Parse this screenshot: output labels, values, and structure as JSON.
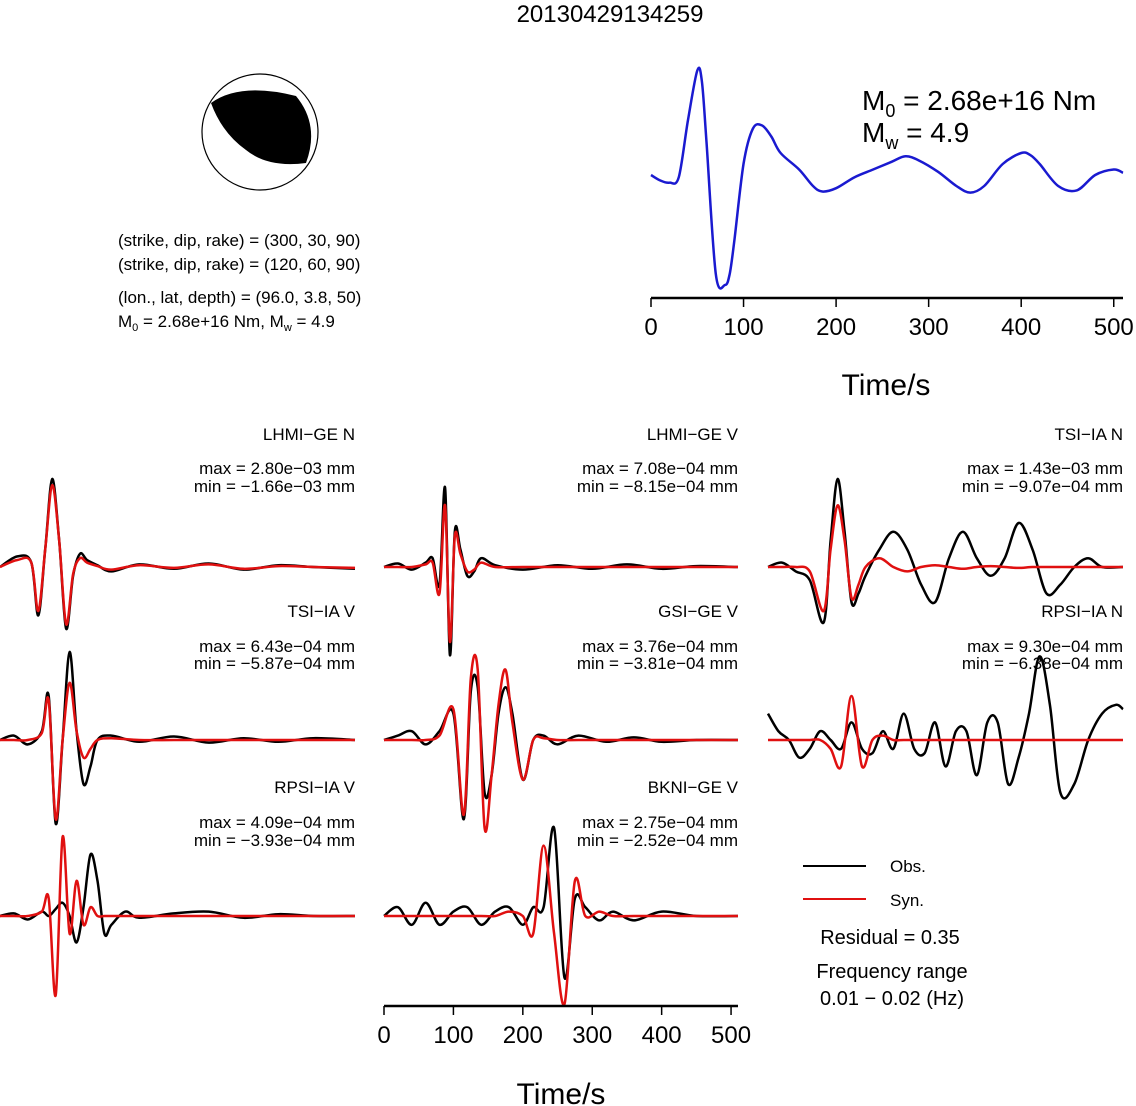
{
  "title": "20130429134259",
  "mechanism": {
    "line1": "(strike, dip, rake) = (300, 30, 90)",
    "line2": "(strike, dip, rake) = (120, 60, 90)",
    "line3": "(lon., lat, depth) = (96.0, 3.8, 50)",
    "m0_prefix": "M",
    "m0_sub": "0",
    "m0_value": " = 2.68e+16 Nm, M",
    "mw_sub": "w",
    "mw_value": " = 4.9"
  },
  "stf": {
    "m0_sym": "M",
    "m0_sub": "0",
    "m0_val": " = 2.68e+16 Nm",
    "mw_sym": "M",
    "mw_sub": "w",
    "mw_val": " = 4.9"
  },
  "legend": {
    "obs": "Obs.",
    "syn": "Syn.",
    "residual": "Residual = 0.35",
    "freq_title": "Frequency range",
    "freq_value": "0.01 − 0.02 (Hz)"
  },
  "colors": {
    "obs": "#000000",
    "syn": "#e01010",
    "stf": "#1a1ad0"
  },
  "chart_data": [
    {
      "type": "line",
      "title": "",
      "xlabel": "Time/s",
      "ylabel": "",
      "xlim": [
        0,
        510
      ],
      "xticks": [
        0,
        100,
        200,
        300,
        400,
        500
      ],
      "grid": false,
      "series": [
        {
          "name": "",
          "x": [
            0,
            10,
            20,
            30,
            40,
            50,
            55,
            60,
            70,
            80,
            85,
            90,
            100,
            110,
            120,
            130,
            140,
            160,
            175,
            185,
            200,
            220,
            240,
            260,
            275,
            290,
            310,
            330,
            345,
            360,
            380,
            400,
            410,
            420,
            440,
            460,
            480,
            500,
            510
          ],
          "y": [
            0.0,
            -0.05,
            -0.07,
            -0.02,
            0.5,
            0.95,
            0.85,
            0.3,
            -0.9,
            -1.0,
            -0.9,
            -0.6,
            0.1,
            0.42,
            0.45,
            0.35,
            0.2,
            0.05,
            -0.1,
            -0.15,
            -0.12,
            -0.02,
            0.05,
            0.12,
            0.17,
            0.13,
            0.03,
            -0.1,
            -0.16,
            -0.1,
            0.1,
            0.2,
            0.18,
            0.1,
            -0.1,
            -0.14,
            0.0,
            0.05,
            0.02
          ]
        }
      ]
    },
    {
      "type": "line",
      "title": "LHMI−GE N",
      "xlabel": "",
      "ylabel": "",
      "max_label": "max = 2.80e−03 mm",
      "min_label": "min = −1.66e−03 mm",
      "series": [
        {
          "name": "Obs.",
          "x": [
            0,
            25,
            45,
            55,
            65,
            75,
            85,
            95,
            105,
            115,
            125,
            140,
            160,
            200,
            250,
            300,
            350,
            400,
            450,
            510
          ],
          "y": [
            0,
            0.12,
            0.05,
            -0.55,
            0.2,
            1.0,
            0.3,
            -0.7,
            -0.1,
            0.15,
            0.08,
            0.02,
            -0.05,
            0.03,
            -0.02,
            0.04,
            -0.03,
            0.02,
            0.0,
            -0.02
          ]
        },
        {
          "name": "Syn.",
          "x": [
            0,
            25,
            45,
            55,
            65,
            75,
            85,
            95,
            105,
            115,
            125,
            140,
            160,
            200,
            250,
            300,
            350,
            400,
            450,
            510
          ],
          "y": [
            0,
            0.08,
            0.05,
            -0.5,
            0.2,
            0.93,
            0.3,
            -0.65,
            -0.08,
            0.1,
            0.05,
            0.01,
            -0.03,
            0.02,
            -0.01,
            0.03,
            -0.02,
            0.01,
            0.0,
            -0.01
          ]
        }
      ]
    },
    {
      "type": "line",
      "title": "LHMI−GE V",
      "xlabel": "",
      "ylabel": "",
      "max_label": "max = 7.08e−04 mm",
      "min_label": "min = −8.15e−04 mm",
      "series": [
        {
          "name": "Obs.",
          "x": [
            0,
            20,
            40,
            60,
            70,
            80,
            88,
            95,
            102,
            110,
            120,
            130,
            140,
            160,
            200,
            250,
            300,
            350,
            400,
            450,
            510
          ],
          "y": [
            0,
            0.04,
            -0.03,
            0.05,
            0.1,
            -0.2,
            0.9,
            -1.0,
            0.4,
            0.2,
            -0.1,
            -0.05,
            0.1,
            0.02,
            -0.03,
            0.02,
            -0.02,
            0.03,
            -0.02,
            0.01,
            0.0
          ]
        },
        {
          "name": "Syn.",
          "x": [
            0,
            20,
            40,
            60,
            70,
            80,
            88,
            95,
            102,
            110,
            120,
            130,
            140,
            160,
            200,
            250,
            300,
            350,
            400,
            450,
            510
          ],
          "y": [
            0,
            0.0,
            0.0,
            0.03,
            0.05,
            -0.3,
            0.7,
            -0.85,
            0.35,
            0.15,
            -0.05,
            -0.03,
            0.05,
            0.0,
            0.0,
            0.0,
            0.0,
            0.0,
            0.0,
            0.0,
            0.0
          ]
        }
      ]
    },
    {
      "type": "line",
      "title": "TSI−IA N",
      "xlabel": "",
      "ylabel": "",
      "max_label": "max = 1.43e−03 mm",
      "min_label": "min = −9.07e−04 mm",
      "series": [
        {
          "name": "Obs.",
          "x": [
            0,
            20,
            40,
            60,
            80,
            90,
            100,
            110,
            120,
            130,
            140,
            160,
            180,
            200,
            220,
            240,
            260,
            280,
            300,
            320,
            340,
            360,
            380,
            400,
            420,
            440,
            460,
            480,
            510
          ],
          "y": [
            0,
            0.05,
            -0.05,
            -0.15,
            -0.63,
            0.3,
            1.0,
            0.4,
            -0.4,
            -0.3,
            -0.1,
            0.2,
            0.4,
            0.2,
            -0.2,
            -0.4,
            0.1,
            0.4,
            0.1,
            -0.1,
            0.1,
            0.5,
            0.2,
            -0.3,
            -0.2,
            0.0,
            0.1,
            0.0,
            0.0
          ]
        },
        {
          "name": "Syn.",
          "x": [
            0,
            20,
            40,
            60,
            80,
            90,
            100,
            110,
            120,
            130,
            140,
            160,
            180,
            200,
            220,
            240,
            260,
            280,
            300,
            320,
            340,
            360,
            380,
            400,
            420,
            440,
            460,
            480,
            510
          ],
          "y": [
            0,
            0.0,
            0.0,
            -0.05,
            -0.5,
            0.2,
            0.7,
            0.3,
            -0.35,
            -0.2,
            0.0,
            0.1,
            0.0,
            -0.05,
            0.0,
            0.02,
            0.0,
            -0.02,
            0.0,
            0.01,
            0.0,
            -0.01,
            0.0,
            0.0,
            0.0,
            0.0,
            0.0,
            0.0,
            0.0
          ]
        }
      ]
    },
    {
      "type": "line",
      "title": "TSI−IA V",
      "xlabel": "",
      "ylabel": "",
      "max_label": "max = 6.43e−04 mm",
      "min_label": "min = −5.87e−04 mm",
      "series": [
        {
          "name": "Obs.",
          "x": [
            0,
            20,
            40,
            60,
            70,
            80,
            90,
            100,
            110,
            120,
            130,
            140,
            160,
            200,
            250,
            300,
            350,
            400,
            450,
            510
          ],
          "y": [
            0,
            0.05,
            -0.05,
            0.1,
            0.5,
            -0.95,
            0.0,
            1.0,
            0.1,
            -0.5,
            -0.3,
            0.0,
            0.05,
            -0.02,
            0.04,
            -0.03,
            0.02,
            -0.02,
            0.02,
            0.0
          ]
        },
        {
          "name": "Syn.",
          "x": [
            0,
            20,
            40,
            60,
            70,
            80,
            90,
            100,
            110,
            120,
            130,
            140,
            160,
            200,
            250,
            300,
            350,
            400,
            450,
            510
          ],
          "y": [
            0,
            0.0,
            0.0,
            0.08,
            0.45,
            -0.9,
            0.0,
            0.65,
            0.1,
            -0.2,
            -0.1,
            0.0,
            0.02,
            0.0,
            0.0,
            0.0,
            0.0,
            0.0,
            0.0,
            0.0
          ]
        }
      ]
    },
    {
      "type": "line",
      "title": "GSI−GE V",
      "xlabel": "",
      "ylabel": "",
      "max_label": "max = 3.76e−04 mm",
      "min_label": "min = −3.81e−04 mm",
      "series": [
        {
          "name": "Obs.",
          "x": [
            0,
            20,
            40,
            60,
            80,
            100,
            115,
            125,
            135,
            145,
            155,
            165,
            175,
            185,
            200,
            215,
            230,
            250,
            280,
            320,
            360,
            400,
            450,
            510
          ],
          "y": [
            0,
            0.05,
            0.1,
            -0.05,
            0.1,
            0.3,
            -0.9,
            0.55,
            0.6,
            -0.6,
            -0.4,
            0.3,
            0.6,
            0.3,
            -0.45,
            0.0,
            0.05,
            -0.05,
            0.05,
            -0.02,
            0.03,
            -0.02,
            0.0,
            0.0
          ]
        },
        {
          "name": "Syn.",
          "x": [
            0,
            20,
            40,
            60,
            80,
            100,
            115,
            125,
            135,
            145,
            155,
            165,
            175,
            185,
            200,
            215,
            230,
            250,
            280,
            320,
            360,
            400,
            450,
            510
          ],
          "y": [
            0,
            0.0,
            0.0,
            0.0,
            0.05,
            0.35,
            -0.85,
            0.7,
            0.8,
            -1.0,
            -0.4,
            0.4,
            0.8,
            0.2,
            -0.45,
            0.0,
            0.02,
            0.0,
            0.0,
            0.0,
            0.0,
            0.0,
            0.0,
            0.0
          ]
        }
      ]
    },
    {
      "type": "line",
      "title": "RPSI−IA N",
      "xlabel": "",
      "ylabel": "",
      "max_label": "max = 9.30e−04 mm",
      "min_label": "min = −6.38e−04 mm",
      "series": [
        {
          "name": "Obs.",
          "x": [
            0,
            15,
            30,
            45,
            60,
            75,
            90,
            105,
            120,
            135,
            150,
            165,
            180,
            195,
            210,
            225,
            240,
            255,
            270,
            285,
            300,
            315,
            330,
            345,
            360,
            375,
            390,
            405,
            420,
            440,
            460,
            480,
            500,
            510
          ],
          "y": [
            0.3,
            0.1,
            0.0,
            -0.2,
            -0.1,
            0.1,
            0.0,
            -0.1,
            0.2,
            -0.1,
            -0.15,
            0.1,
            -0.1,
            0.3,
            -0.1,
            -0.15,
            0.2,
            -0.3,
            0.1,
            0.1,
            -0.4,
            0.2,
            0.2,
            -0.5,
            -0.2,
            0.3,
            0.95,
            0.4,
            -0.6,
            -0.5,
            0.0,
            0.3,
            0.4,
            0.35
          ]
        },
        {
          "name": "Syn.",
          "x": [
            0,
            15,
            30,
            45,
            60,
            75,
            90,
            105,
            120,
            135,
            150,
            165,
            180,
            195,
            210,
            225,
            240,
            255,
            270,
            285,
            300,
            315,
            330,
            345,
            360,
            375,
            390,
            405,
            420,
            440,
            460,
            480,
            500,
            510
          ],
          "y": [
            0.0,
            0.0,
            0.0,
            0.0,
            0.0,
            0.0,
            -0.1,
            -0.3,
            0.5,
            -0.3,
            0.0,
            0.05,
            0.0,
            0.0,
            0.0,
            0.0,
            0.0,
            0.0,
            0.0,
            0.0,
            0.0,
            0.0,
            0.0,
            0.0,
            0.0,
            0.0,
            0.0,
            0.0,
            0.0,
            0.0,
            0.0,
            0.0,
            0.0,
            0.0
          ]
        }
      ]
    },
    {
      "type": "line",
      "title": "RPSI−IA V",
      "xlabel": "",
      "ylabel": "",
      "max_label": "max = 4.09e−04 mm",
      "min_label": "min = −3.93e−04 mm",
      "series": [
        {
          "name": "Obs.",
          "x": [
            0,
            20,
            40,
            60,
            70,
            80,
            90,
            100,
            110,
            120,
            130,
            140,
            150,
            160,
            180,
            200,
            250,
            300,
            350,
            400,
            450,
            510
          ],
          "y": [
            0,
            0.03,
            -0.04,
            0.05,
            0.0,
            0.08,
            0.15,
            0.0,
            -0.3,
            0.1,
            0.7,
            0.4,
            -0.2,
            -0.1,
            0.05,
            -0.02,
            0.03,
            0.05,
            -0.02,
            0.02,
            0.0,
            0.0
          ]
        },
        {
          "name": "Syn.",
          "x": [
            0,
            20,
            40,
            60,
            70,
            80,
            90,
            100,
            110,
            120,
            130,
            140,
            150,
            160,
            180,
            200,
            250,
            300,
            350,
            400,
            450,
            510
          ],
          "y": [
            0,
            0.0,
            0.0,
            0.05,
            0.2,
            -0.9,
            0.9,
            -0.2,
            0.4,
            -0.1,
            0.1,
            0.0,
            0.0,
            0.0,
            0.0,
            0.0,
            0.0,
            0.0,
            0.0,
            0.0,
            0.0,
            0.0
          ]
        }
      ]
    },
    {
      "type": "line",
      "title": "BKNI−GE V",
      "xlabel": "Time/s",
      "ylabel": "",
      "xlim": [
        0,
        510
      ],
      "xticks": [
        0,
        100,
        200,
        300,
        400,
        500
      ],
      "max_label": "max = 2.75e−04 mm",
      "min_label": "min = −2.52e−04 mm",
      "series": [
        {
          "name": "Obs.",
          "x": [
            0,
            20,
            40,
            60,
            80,
            100,
            120,
            140,
            160,
            180,
            200,
            215,
            230,
            245,
            260,
            275,
            290,
            310,
            330,
            360,
            400,
            450,
            510
          ],
          "y": [
            0,
            0.1,
            -0.1,
            0.15,
            -0.1,
            0.05,
            0.1,
            -0.1,
            0.05,
            0.1,
            -0.1,
            0.1,
            0.1,
            1.0,
            -0.7,
            0.2,
            0.1,
            -0.05,
            0.05,
            -0.05,
            0.05,
            0.0,
            0.0
          ]
        },
        {
          "name": "Syn.",
          "x": [
            0,
            20,
            40,
            60,
            80,
            100,
            120,
            140,
            160,
            180,
            200,
            215,
            230,
            245,
            260,
            275,
            290,
            310,
            330,
            360,
            400,
            450,
            510
          ],
          "y": [
            0,
            0.0,
            0.0,
            0.0,
            0.0,
            0.0,
            0.0,
            0.0,
            0.0,
            0.05,
            0.0,
            -0.2,
            0.8,
            -0.2,
            -1.0,
            0.4,
            0.0,
            0.05,
            0.0,
            0.0,
            0.0,
            0.0,
            0.0
          ]
        }
      ]
    }
  ]
}
